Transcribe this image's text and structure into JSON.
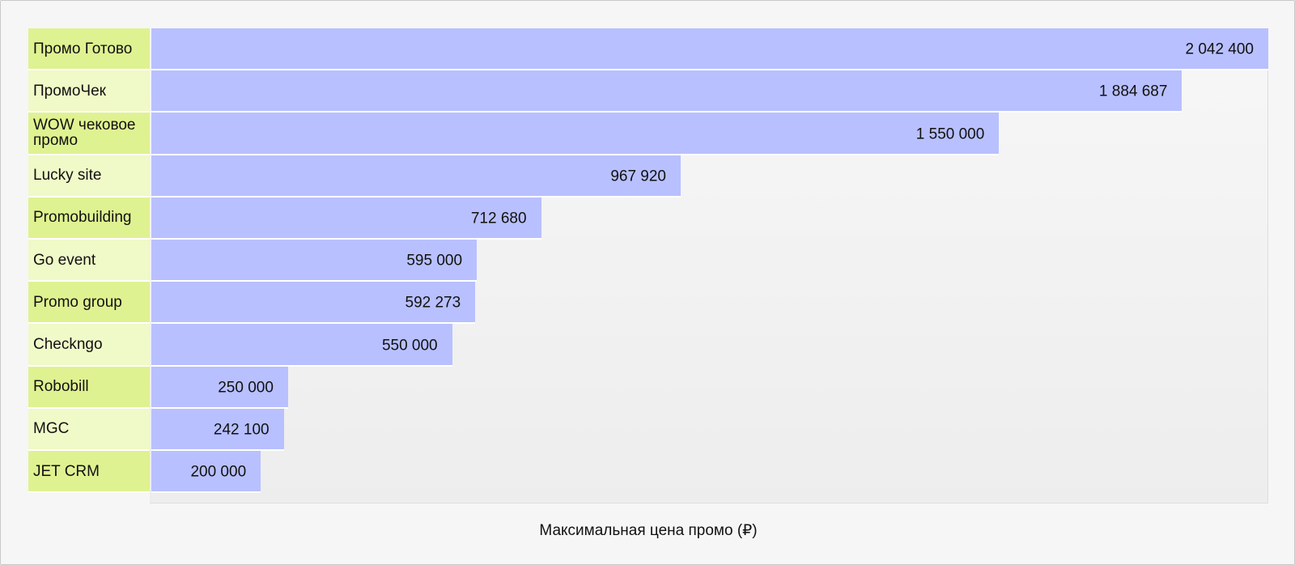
{
  "chart_data": {
    "type": "bar",
    "orientation": "horizontal",
    "categories": [
      "Промо Готово",
      "ПромоЧек",
      "WOW чековое промо",
      "Lucky site",
      "Promobuilding",
      "Go event",
      "Promo group",
      "Checkngo",
      "Robobill",
      "MGC",
      "JET CRM"
    ],
    "values": [
      2042400,
      1884687,
      1550000,
      967920,
      712680,
      595000,
      592273,
      550000,
      250000,
      242100,
      200000
    ],
    "value_labels": [
      "2 042 400",
      "1 884 687",
      "1 550 000",
      "967 920",
      "712 680",
      "595 000",
      "592 273",
      "550 000",
      "250 000",
      "242 100",
      "200 000"
    ],
    "xlabel": "Максимальная цена промо (₽)",
    "xlim": [
      0,
      2042400
    ],
    "grid": false,
    "colors": {
      "bar": "#b8c0ff",
      "label_cell_a": "#dff291",
      "label_cell_b": "#f0f9c8"
    }
  }
}
